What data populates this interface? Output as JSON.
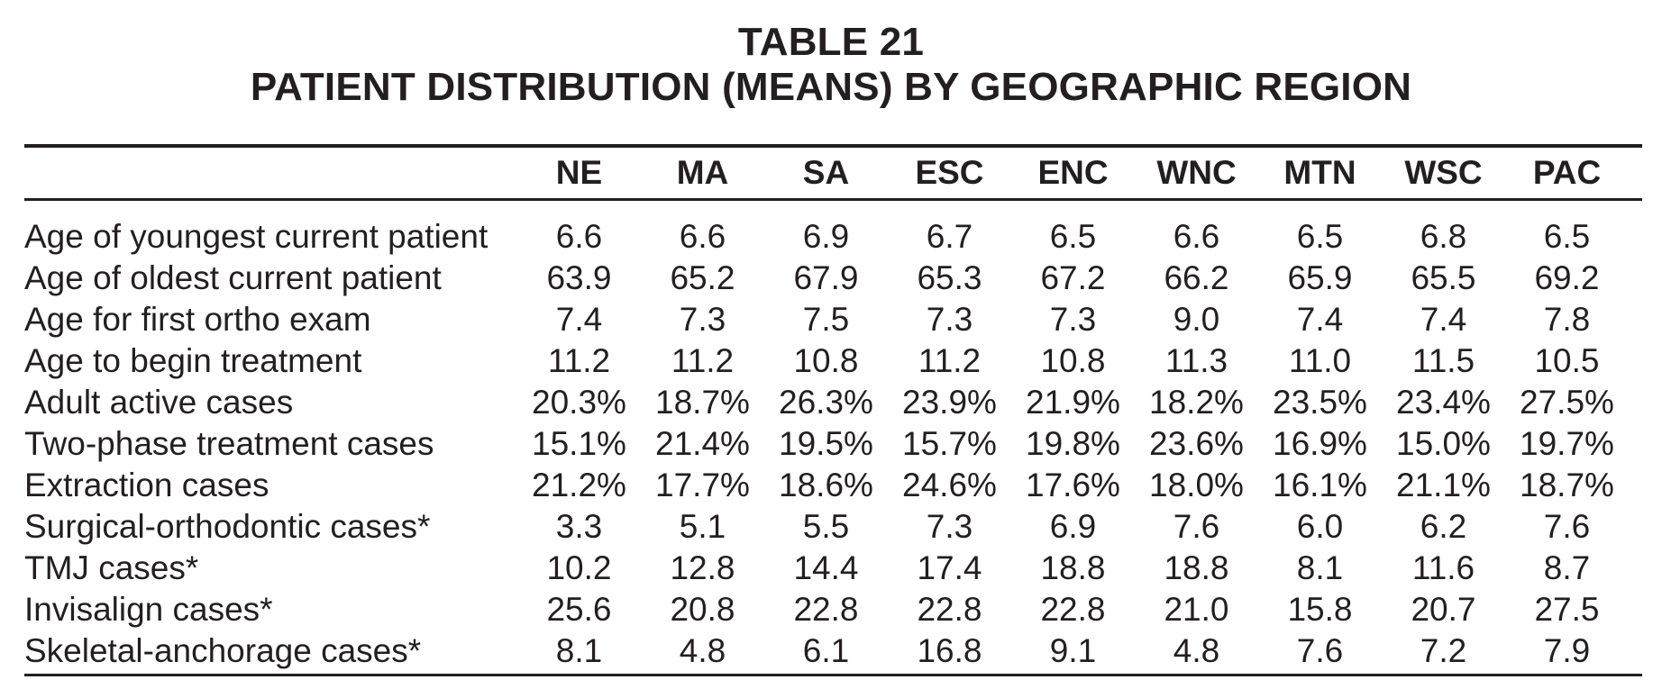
{
  "table": {
    "number": "TABLE 21",
    "title": "PATIENT DISTRIBUTION (MEANS) BY GEOGRAPHIC REGION",
    "columns": [
      "NE",
      "MA",
      "SA",
      "ESC",
      "ENC",
      "WNC",
      "MTN",
      "WSC",
      "PAC"
    ],
    "rows": [
      {
        "label": "Age of youngest current patient",
        "values": [
          "6.6",
          "6.6",
          "6.9",
          "6.7",
          "6.5",
          "6.6",
          "6.5",
          "6.8",
          "6.5"
        ]
      },
      {
        "label": "Age of oldest current patient",
        "values": [
          "63.9",
          "65.2",
          "67.9",
          "65.3",
          "67.2",
          "66.2",
          "65.9",
          "65.5",
          "69.2"
        ]
      },
      {
        "label": "Age for first ortho exam",
        "values": [
          "7.4",
          "7.3",
          "7.5",
          "7.3",
          "7.3",
          "9.0",
          "7.4",
          "7.4",
          "7.8"
        ]
      },
      {
        "label": "Age to begin treatment",
        "values": [
          "11.2",
          "11.2",
          "10.8",
          "11.2",
          "10.8",
          "11.3",
          "11.0",
          "11.5",
          "10.5"
        ]
      },
      {
        "label": "Adult active cases",
        "values": [
          "20.3%",
          "18.7%",
          "26.3%",
          "23.9%",
          "21.9%",
          "18.2%",
          "23.5%",
          "23.4%",
          "27.5%"
        ]
      },
      {
        "label": "Two-phase treatment cases",
        "values": [
          "15.1%",
          "21.4%",
          "19.5%",
          "15.7%",
          "19.8%",
          "23.6%",
          "16.9%",
          "15.0%",
          "19.7%"
        ]
      },
      {
        "label": "Extraction cases",
        "values": [
          "21.2%",
          "17.7%",
          "18.6%",
          "24.6%",
          "17.6%",
          "18.0%",
          "16.1%",
          "21.1%",
          "18.7%"
        ]
      },
      {
        "label": "Surgical-orthodontic cases*",
        "values": [
          "3.3",
          "5.1",
          "5.5",
          "7.3",
          "6.9",
          "7.6",
          "6.0",
          "6.2",
          "7.6"
        ]
      },
      {
        "label": "TMJ cases*",
        "values": [
          "10.2",
          "12.8",
          "14.4",
          "17.4",
          "18.8",
          "18.8",
          "8.1",
          "11.6",
          "8.7"
        ]
      },
      {
        "label": "Invisalign cases*",
        "values": [
          "25.6",
          "20.8",
          "22.8",
          "22.8",
          "22.8",
          "21.0",
          "15.8",
          "20.7",
          "27.5"
        ]
      },
      {
        "label": "Skeletal-anchorage cases*",
        "values": [
          "8.1",
          "4.8",
          "6.1",
          "16.8",
          "9.1",
          "4.8",
          "7.6",
          "7.2",
          "7.9"
        ]
      }
    ]
  }
}
